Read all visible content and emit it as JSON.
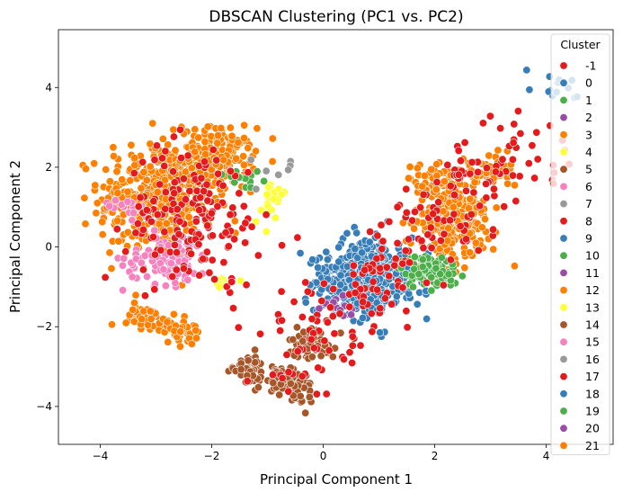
{
  "chart_data": {
    "type": "scatter",
    "title": "DBSCAN Clustering (PC1 vs. PC2)",
    "xlabel": "Principal Component 1",
    "ylabel": "Principal Component 2",
    "xlim": [
      -4.75,
      5.2
    ],
    "ylim": [
      -4.95,
      5.45
    ],
    "xticks": [
      -4,
      -2,
      0,
      2,
      4
    ],
    "yticks": [
      -4,
      -2,
      0,
      2,
      4
    ],
    "xtick_labels": [
      "−4",
      "−2",
      "0",
      "2",
      "4"
    ],
    "ytick_labels": [
      "−4",
      "−2",
      "0",
      "2",
      "4"
    ],
    "grid": false,
    "legend": {
      "title": "Cluster",
      "placement": "right",
      "entries": [
        {
          "label": "-1",
          "color": "#e41a1c"
        },
        {
          "label": "0",
          "color": "#377eb8"
        },
        {
          "label": "1",
          "color": "#4daf4a"
        },
        {
          "label": "2",
          "color": "#984ea3"
        },
        {
          "label": "3",
          "color": "#ff7f00"
        },
        {
          "label": "4",
          "color": "#ffff33"
        },
        {
          "label": "5",
          "color": "#a65628"
        },
        {
          "label": "6",
          "color": "#f781bf"
        },
        {
          "label": "7",
          "color": "#999999"
        },
        {
          "label": "8",
          "color": "#e41a1c"
        },
        {
          "label": "9",
          "color": "#377eb8"
        },
        {
          "label": "10",
          "color": "#4daf4a"
        },
        {
          "label": "11",
          "color": "#984ea3"
        },
        {
          "label": "12",
          "color": "#ff7f00"
        },
        {
          "label": "13",
          "color": "#ffff33"
        },
        {
          "label": "14",
          "color": "#a65628"
        },
        {
          "label": "15",
          "color": "#f781bf"
        },
        {
          "label": "16",
          "color": "#999999"
        },
        {
          "label": "17",
          "color": "#e41a1c"
        },
        {
          "label": "18",
          "color": "#377eb8"
        },
        {
          "label": "19",
          "color": "#4daf4a"
        },
        {
          "label": "20",
          "color": "#984ea3"
        },
        {
          "label": "21",
          "color": "#ff7f00"
        }
      ]
    },
    "clusters": [
      {
        "cluster": "3",
        "color": "#ff7f00",
        "shape": "blob",
        "center": [
          -3.0,
          1.2
        ],
        "spread": [
          0.85,
          1.25
        ],
        "n": 420
      },
      {
        "cluster": "21",
        "color": "#ff7f00",
        "shape": "blob",
        "center": [
          -1.9,
          2.2
        ],
        "spread": [
          0.55,
          0.65
        ],
        "n": 200
      },
      {
        "cluster": "12",
        "color": "#ff7f00",
        "shape": "line",
        "from": [
          -3.4,
          -1.6
        ],
        "to": [
          -2.3,
          -2.3
        ],
        "width": 0.15,
        "n": 90
      },
      {
        "cluster": "21",
        "color": "#ff7f00",
        "shape": "blob",
        "center": [
          2.3,
          0.7
        ],
        "spread": [
          0.55,
          0.8
        ],
        "n": 260
      },
      {
        "cluster": "3",
        "color": "#ff7f00",
        "shape": "line",
        "from": [
          1.6,
          1.7
        ],
        "to": [
          3.4,
          2.0
        ],
        "width": 0.25,
        "n": 90
      },
      {
        "cluster": "6",
        "color": "#f781bf",
        "shape": "blob",
        "center": [
          -2.8,
          -0.3
        ],
        "spread": [
          0.65,
          0.55
        ],
        "n": 90
      },
      {
        "cluster": "15",
        "color": "#f781bf",
        "shape": "line",
        "from": [
          -3.8,
          1.0
        ],
        "to": [
          -3.2,
          0.9
        ],
        "width": 0.15,
        "n": 14
      },
      {
        "cluster": "9",
        "color": "#377eb8",
        "shape": "blob",
        "center": [
          0.8,
          -0.8
        ],
        "spread": [
          0.7,
          0.75
        ],
        "n": 520
      },
      {
        "cluster": "0",
        "color": "#377eb8",
        "shape": "line",
        "from": [
          3.6,
          4.0
        ],
        "to": [
          4.7,
          3.9
        ],
        "width": 0.2,
        "n": 14
      },
      {
        "cluster": "10",
        "color": "#4daf4a",
        "shape": "blob",
        "center": [
          1.9,
          -0.6
        ],
        "spread": [
          0.45,
          0.35
        ],
        "n": 90
      },
      {
        "cluster": "19",
        "color": "#4daf4a",
        "shape": "blob",
        "center": [
          -1.4,
          1.7
        ],
        "spread": [
          0.35,
          0.3
        ],
        "n": 14
      },
      {
        "cluster": "5",
        "color": "#a65628",
        "shape": "line",
        "from": [
          -1.6,
          -2.9
        ],
        "to": [
          -0.3,
          -3.6
        ],
        "width": 0.2,
        "n": 120
      },
      {
        "cluster": "14",
        "color": "#a65628",
        "shape": "blob",
        "center": [
          -0.2,
          -2.4
        ],
        "spread": [
          0.35,
          0.35
        ],
        "n": 60
      },
      {
        "cluster": "4",
        "color": "#ffff33",
        "shape": "blob",
        "center": [
          -0.9,
          1.1
        ],
        "spread": [
          0.3,
          0.45
        ],
        "n": 22
      },
      {
        "cluster": "13",
        "color": "#ffff33",
        "shape": "blob",
        "center": [
          -1.9,
          -0.9
        ],
        "spread": [
          0.25,
          0.15
        ],
        "n": 8
      },
      {
        "cluster": "2",
        "color": "#984ea3",
        "shape": "blob",
        "center": [
          0.2,
          -1.5
        ],
        "spread": [
          0.4,
          0.3
        ],
        "n": 12
      },
      {
        "cluster": "7",
        "color": "#999999",
        "shape": "blob",
        "center": [
          -1.0,
          1.5
        ],
        "spread": [
          1.2,
          1.0
        ],
        "n": 8
      },
      {
        "cluster": "-1",
        "color": "#e41a1c",
        "shape": "noise-left",
        "center": [
          -2.3,
          0.8
        ],
        "spread": [
          1.0,
          1.5
        ],
        "n": 170
      },
      {
        "cluster": "-1",
        "color": "#e41a1c",
        "shape": "noise-right",
        "center": [
          1.2,
          -0.2
        ],
        "spread": [
          1.2,
          1.2
        ],
        "n": 230
      }
    ]
  }
}
